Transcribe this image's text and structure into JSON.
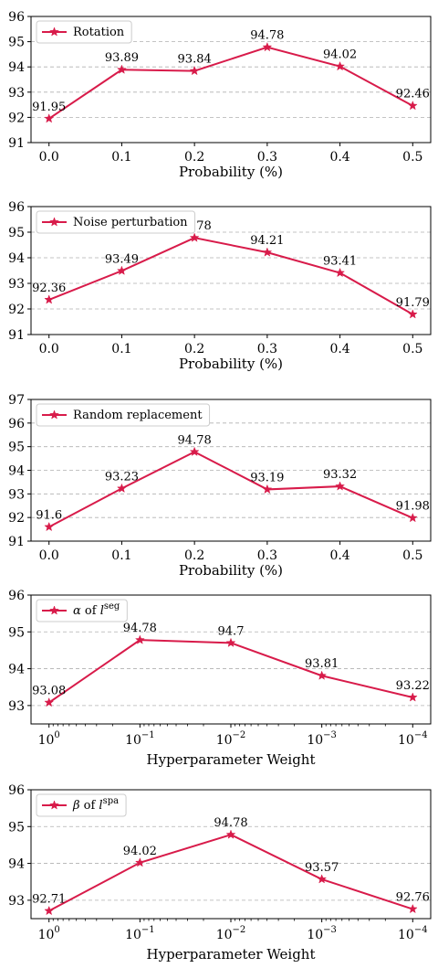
{
  "chart_data": [
    {
      "type": "line",
      "x": [
        "0.0",
        "0.1",
        "0.2",
        "0.3",
        "0.4",
        "0.5"
      ],
      "series": [
        {
          "name": "Rotation",
          "values": [
            91.95,
            93.89,
            93.84,
            94.78,
            94.02,
            92.46
          ]
        }
      ],
      "data_labels": [
        "91.95",
        "93.89",
        "93.84",
        "94.78",
        "94.02",
        "92.46"
      ],
      "xlabel": "Probability (%)",
      "ylabel": "",
      "ylim": [
        91,
        96
      ],
      "yticks": [
        "91",
        "92",
        "93",
        "94",
        "95",
        "96"
      ],
      "grid": "horizontal dashed",
      "legend": "top-left",
      "log_x": false,
      "color": "#d81b4a"
    },
    {
      "type": "line",
      "x": [
        "0.0",
        "0.1",
        "0.2",
        "0.3",
        "0.4",
        "0.5"
      ],
      "series": [
        {
          "name": "Noise perturbation",
          "values": [
            92.36,
            93.49,
            94.78,
            94.21,
            93.41,
            91.79
          ]
        }
      ],
      "data_labels": [
        "92.36",
        "93.49",
        "94.78",
        "94.21",
        "93.41",
        "91.79"
      ],
      "xlabel": "Probability (%)",
      "ylabel": "",
      "ylim": [
        91,
        96
      ],
      "yticks": [
        "91",
        "92",
        "93",
        "94",
        "95",
        "96"
      ],
      "grid": "horizontal dashed",
      "legend": "top-left",
      "log_x": false,
      "color": "#d81b4a"
    },
    {
      "type": "line",
      "x": [
        "0.0",
        "0.1",
        "0.2",
        "0.3",
        "0.4",
        "0.5"
      ],
      "series": [
        {
          "name": "Random replacement",
          "values": [
            91.6,
            93.23,
            94.78,
            93.19,
            93.32,
            91.98
          ]
        }
      ],
      "data_labels": [
        "91.6",
        "93.23",
        "94.78",
        "93.19",
        "93.32",
        "91.98"
      ],
      "xlabel": "Probability (%)",
      "ylabel": "",
      "ylim": [
        91,
        97
      ],
      "yticks": [
        "91",
        "92",
        "93",
        "94",
        "95",
        "96",
        "97"
      ],
      "grid": "horizontal dashed",
      "legend": "top-left",
      "log_x": false,
      "color": "#d81b4a"
    },
    {
      "type": "line",
      "x": [
        1,
        0.1,
        0.01,
        0.001,
        0.0001
      ],
      "xtick_base": "10",
      "xtick_exponents": [
        "0",
        "−1",
        "−2",
        "−3",
        "−4"
      ],
      "series": [
        {
          "name": "α of l",
          "name_sup": "seg",
          "values": [
            93.08,
            94.78,
            94.7,
            93.81,
            93.22
          ]
        }
      ],
      "data_labels": [
        "93.08",
        "94.78",
        "94.7",
        "93.81",
        "93.22"
      ],
      "xlabel": "Hyperparameter Weight",
      "ylabel": "",
      "ylim": [
        92.5,
        96
      ],
      "yticks": [
        "93",
        "94",
        "95",
        "96"
      ],
      "ytick_values": [
        93,
        94,
        95,
        96
      ],
      "grid": "horizontal dashed",
      "legend": "top-left",
      "log_x": true,
      "color": "#d81b4a"
    },
    {
      "type": "line",
      "x": [
        1,
        0.1,
        0.01,
        0.001,
        0.0001
      ],
      "xtick_base": "10",
      "xtick_exponents": [
        "0",
        "−1",
        "−2",
        "−3",
        "−4"
      ],
      "series": [
        {
          "name": "β of l",
          "name_sup": "spa",
          "values": [
            92.71,
            94.02,
            94.78,
            93.57,
            92.76
          ]
        }
      ],
      "data_labels": [
        "92.71",
        "94.02",
        "94.78",
        "93.57",
        "92.76"
      ],
      "xlabel": "Hyperparameter Weight",
      "ylabel": "",
      "ylim": [
        92.5,
        96
      ],
      "yticks": [
        "93",
        "94",
        "95",
        "96"
      ],
      "ytick_values": [
        93,
        94,
        95,
        96
      ],
      "grid": "horizontal dashed",
      "legend": "top-left",
      "log_x": true,
      "color": "#d81b4a"
    }
  ]
}
